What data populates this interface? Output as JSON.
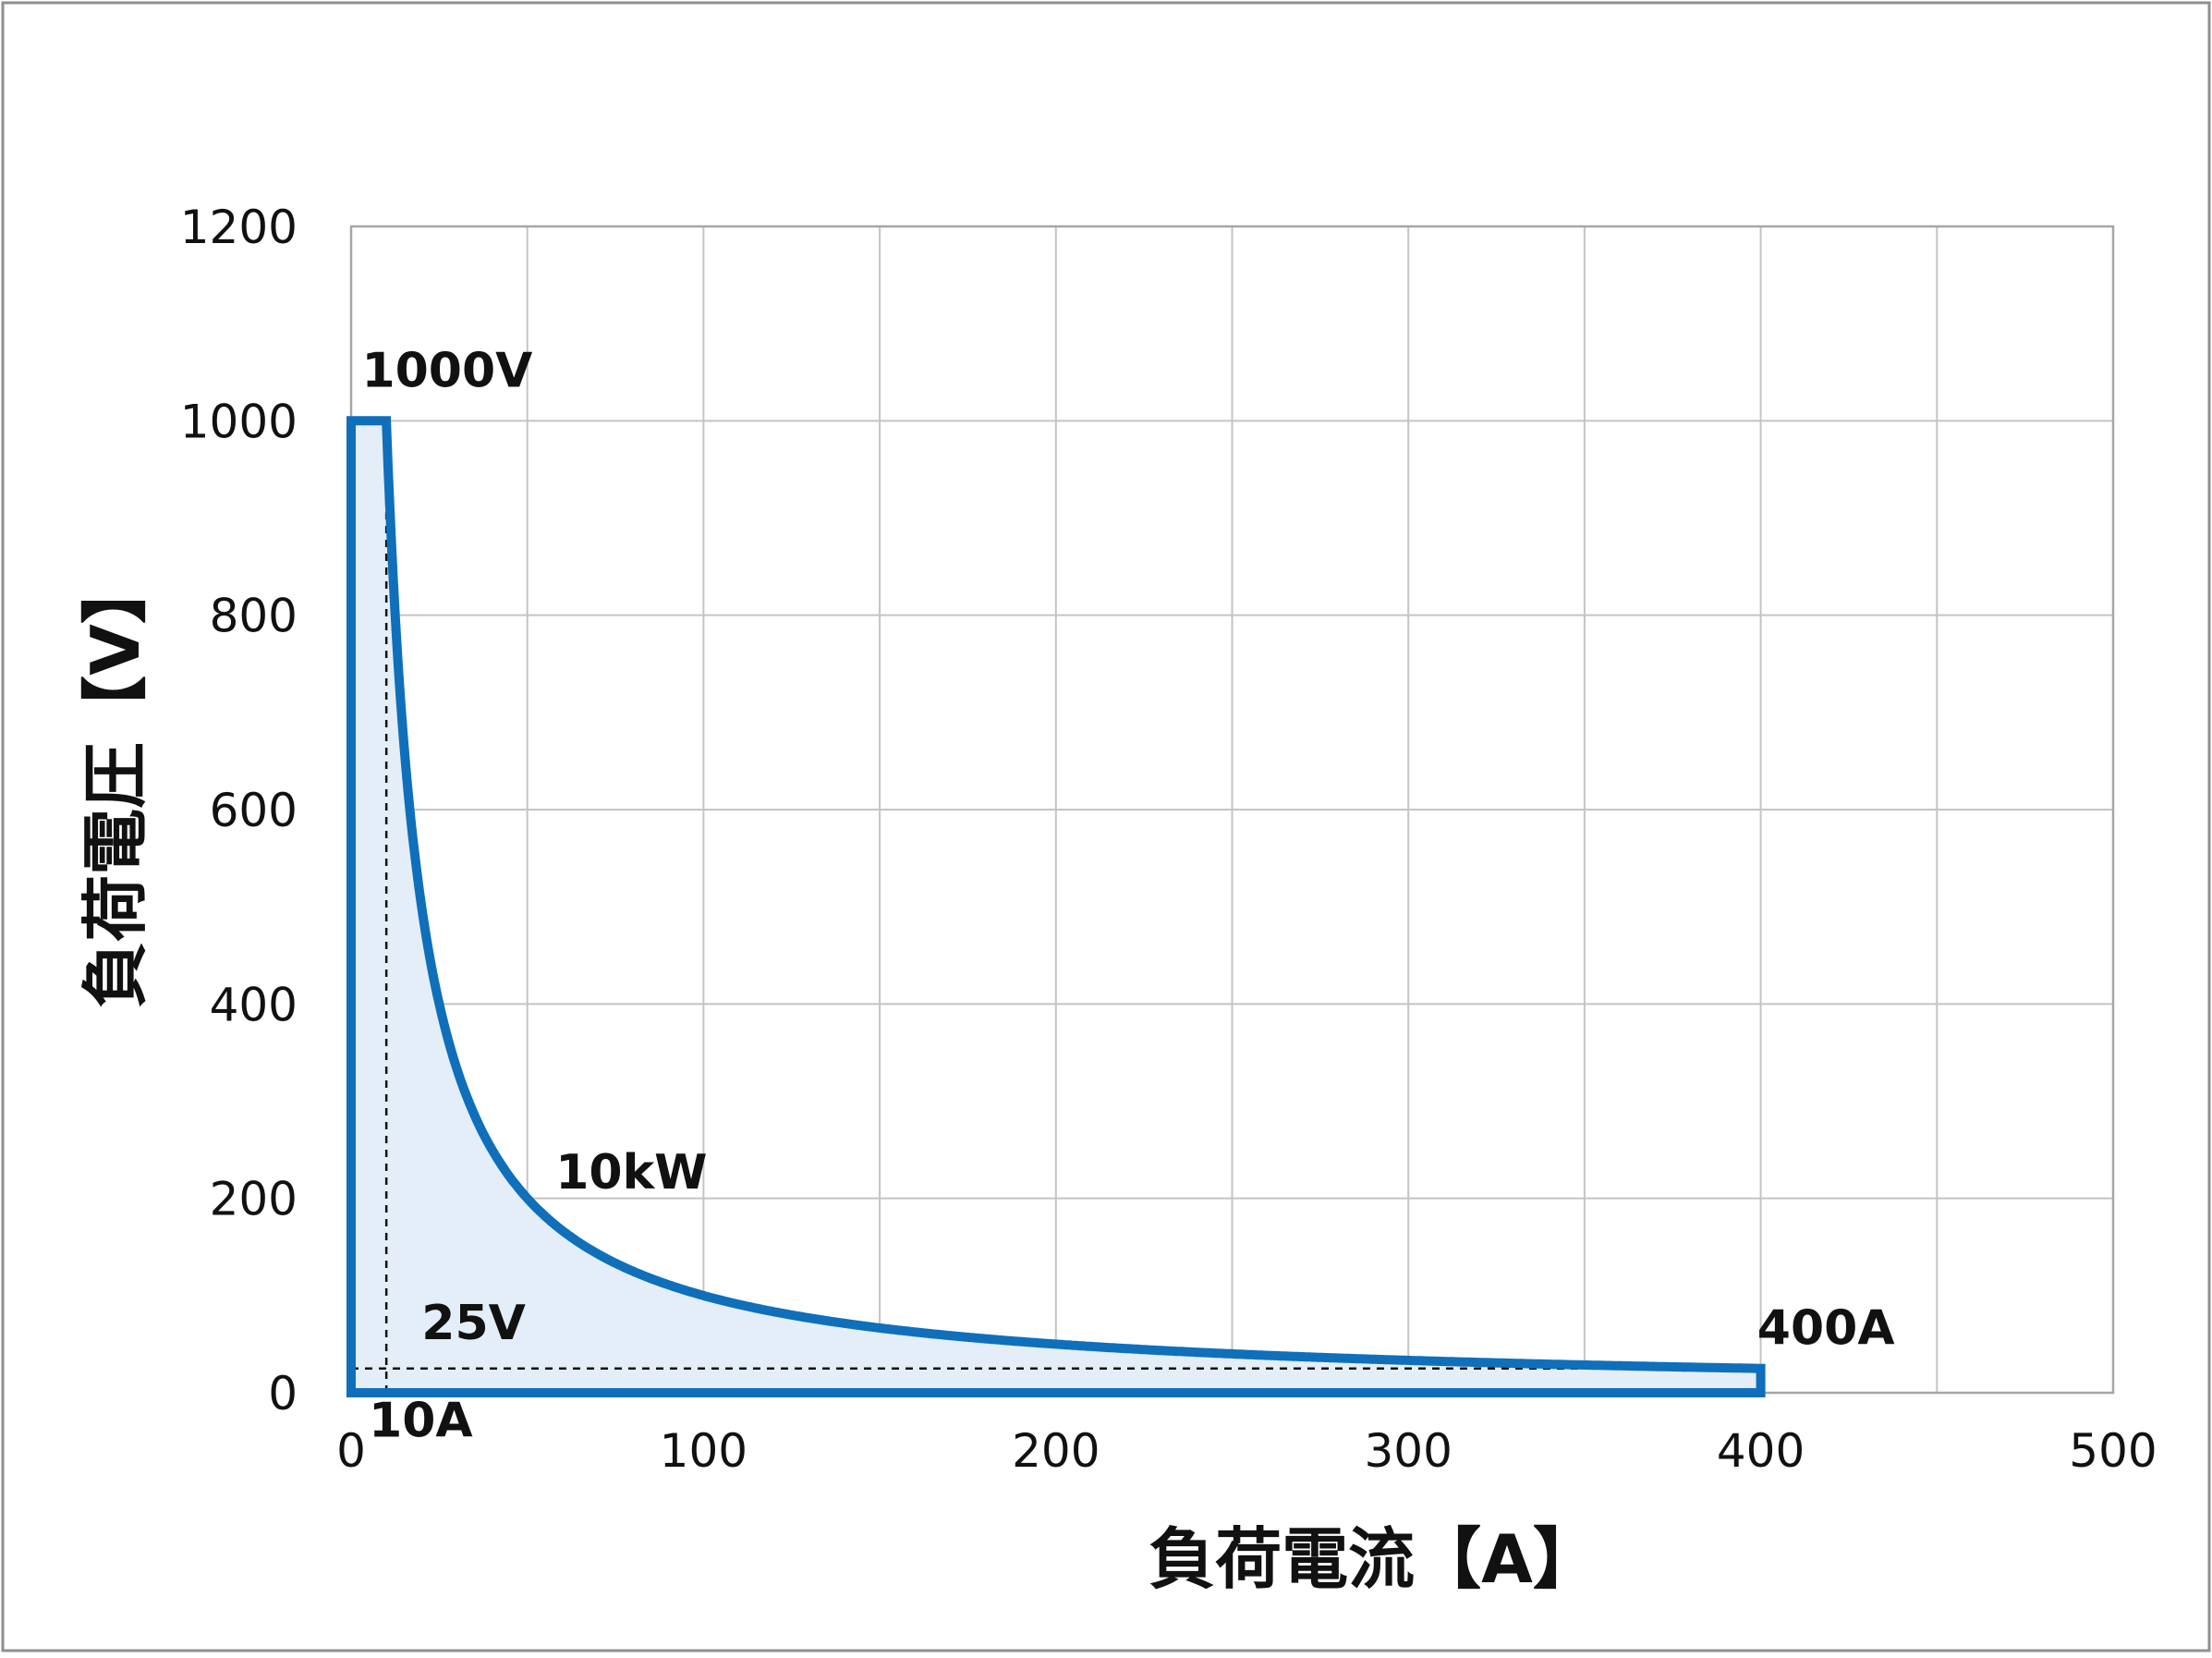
{
  "chart_data": {
    "type": "area",
    "xlabel": "負荷電流【A】",
    "ylabel": "負荷電圧【V】",
    "xlim": [
      0,
      500
    ],
    "ylim": [
      0,
      1200
    ],
    "x_ticks": [
      "0",
      "100",
      "200",
      "300",
      "400",
      "500"
    ],
    "y_ticks": [
      "0",
      "200",
      "400",
      "600",
      "800",
      "1000",
      "1200"
    ],
    "grid": true,
    "line_color": "#0f6fba",
    "fill_color": "#e3eef8",
    "series": [
      {
        "description_points": [
          [
            0,
            1000
          ],
          [
            10,
            1000
          ],
          [
            12.5,
            800
          ],
          [
            16.7,
            600
          ],
          [
            20,
            500
          ],
          [
            25,
            400
          ],
          [
            33.3,
            300
          ],
          [
            40,
            250
          ],
          [
            50,
            200
          ],
          [
            66.7,
            150
          ],
          [
            80,
            125
          ],
          [
            100,
            100
          ],
          [
            125,
            80
          ],
          [
            150,
            66.7
          ],
          [
            200,
            50
          ],
          [
            250,
            40
          ],
          [
            300,
            33.3
          ],
          [
            350,
            28.6
          ],
          [
            400,
            25
          ],
          [
            400,
            0
          ],
          [
            0,
            0
          ]
        ]
      }
    ],
    "reference_lines": [
      {
        "axis": "x",
        "value": 10,
        "from": 0,
        "to": 1000
      },
      {
        "axis": "y",
        "value": 25,
        "from": 0,
        "to": 400
      }
    ],
    "annotations": [
      {
        "text": "1000V",
        "x": 3,
        "y": 1035
      },
      {
        "text": "10kW",
        "x": 58,
        "y": 210
      },
      {
        "text": "25V",
        "x": 20,
        "y": 55
      },
      {
        "text": "400A",
        "x": 399,
        "y": 50
      },
      {
        "text": "10A",
        "x": 5,
        "y": -45
      }
    ]
  }
}
